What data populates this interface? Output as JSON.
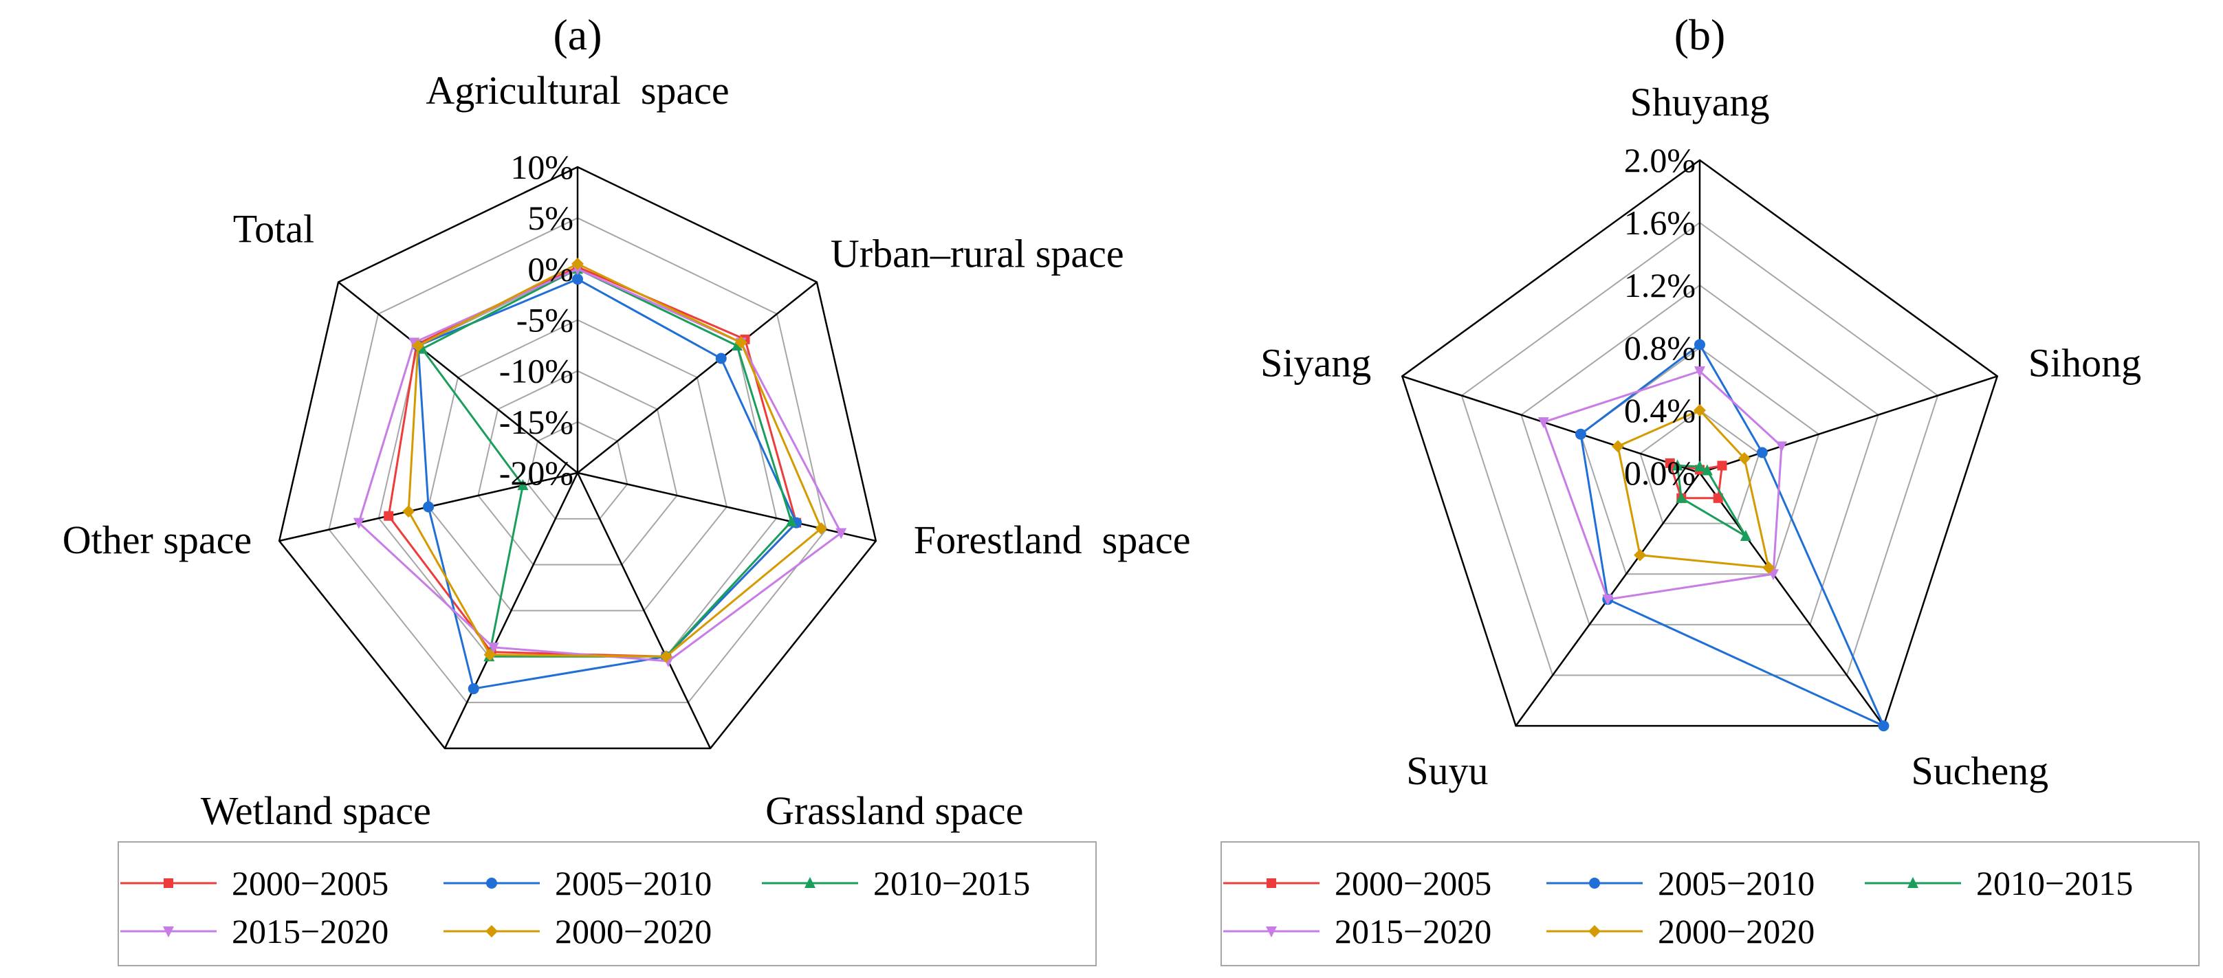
{
  "chart_data": [
    {
      "type": "radar",
      "panel_label": "(a)",
      "axes": [
        "Agricultural  space",
        "Urban–rural space",
        "Forestland  space",
        "Grassland space",
        "Wetland space",
        "Other space",
        "Total"
      ],
      "tick_values": [
        -20,
        -15,
        -10,
        -5,
        0,
        5,
        10
      ],
      "tick_labels": [
        "-20%",
        "-15%",
        "-10%",
        "-5%",
        "0%",
        "5%",
        "10%"
      ],
      "range": [
        -20,
        10
      ],
      "series": [
        {
          "name": "2000−2005",
          "color": "#ee3b3b",
          "marker": "square",
          "values": [
            0.2,
            1.0,
            2.0,
            0.0,
            -0.5,
            -1.0,
            0.2
          ]
        },
        {
          "name": "2005−2010",
          "color": "#1f6fd6",
          "marker": "circle",
          "values": [
            -1.0,
            -2.0,
            2.0,
            0.0,
            3.5,
            -5.0,
            0.0
          ]
        },
        {
          "name": "2010−2015",
          "color": "#1a9e5c",
          "marker": "triangle-up",
          "values": [
            0.0,
            0.0,
            1.5,
            0.0,
            0.0,
            -14.5,
            -0.5
          ]
        },
        {
          "name": "2015−2020",
          "color": "#c77ce6",
          "marker": "triangle-down",
          "values": [
            0.0,
            0.5,
            6.5,
            0.5,
            -1.0,
            2.0,
            0.5
          ]
        },
        {
          "name": "2000−2020",
          "color": "#d49a00",
          "marker": "diamond",
          "values": [
            0.5,
            0.5,
            4.5,
            0.0,
            -0.2,
            -3.0,
            0.0
          ]
        }
      ]
    },
    {
      "type": "radar",
      "panel_label": "(b)",
      "axes": [
        "Shuyang",
        "Sihong",
        "Sucheng",
        "Suyu",
        "Siyang"
      ],
      "tick_values": [
        0.0,
        0.4,
        0.8,
        1.2,
        1.6,
        2.0
      ],
      "tick_labels": [
        "0.0%",
        "0.4%",
        "0.8%",
        "1.2%",
        "1.6%",
        "2.0%"
      ],
      "range": [
        0.0,
        2.0
      ],
      "series": [
        {
          "name": "2000−2005",
          "color": "#ee3b3b",
          "marker": "square",
          "values": [
            0.02,
            0.15,
            0.2,
            0.2,
            0.2
          ]
        },
        {
          "name": "2005−2010",
          "color": "#1f6fd6",
          "marker": "circle",
          "values": [
            0.82,
            0.42,
            2.0,
            1.0,
            0.8
          ]
        },
        {
          "name": "2010−2015",
          "color": "#1a9e5c",
          "marker": "triangle-up",
          "values": [
            0.04,
            0.05,
            0.5,
            0.2,
            0.15
          ]
        },
        {
          "name": "2015−2020",
          "color": "#c77ce6",
          "marker": "triangle-down",
          "values": [
            0.65,
            0.55,
            0.8,
            1.0,
            1.05
          ]
        },
        {
          "name": "2000−2020",
          "color": "#d49a00",
          "marker": "diamond",
          "values": [
            0.4,
            0.3,
            0.75,
            0.65,
            0.55
          ]
        }
      ]
    }
  ]
}
